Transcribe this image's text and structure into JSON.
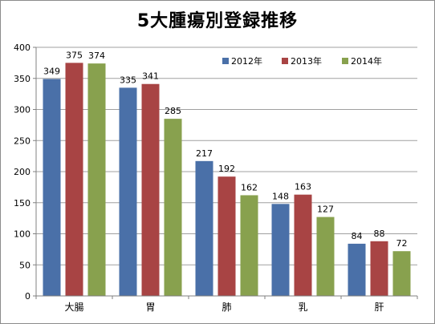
{
  "chart_data": {
    "type": "bar",
    "title": "5大腫瘍別登録推移",
    "xlabel": "",
    "ylabel": "",
    "ylim": [
      0,
      400
    ],
    "yticks": [
      0,
      50,
      100,
      150,
      200,
      250,
      300,
      350,
      400
    ],
    "grid": true,
    "legend_position": "top-right",
    "categories": [
      "大腸",
      "胃",
      "肺",
      "乳",
      "肝"
    ],
    "series": [
      {
        "name": "2012年",
        "color": "#4a70a8",
        "values": [
          349,
          335,
          217,
          148,
          84
        ]
      },
      {
        "name": "2013年",
        "color": "#a84444",
        "values": [
          375,
          341,
          192,
          163,
          88
        ]
      },
      {
        "name": "2014年",
        "color": "#88a14e",
        "values": [
          374,
          285,
          162,
          127,
          72
        ]
      }
    ]
  }
}
